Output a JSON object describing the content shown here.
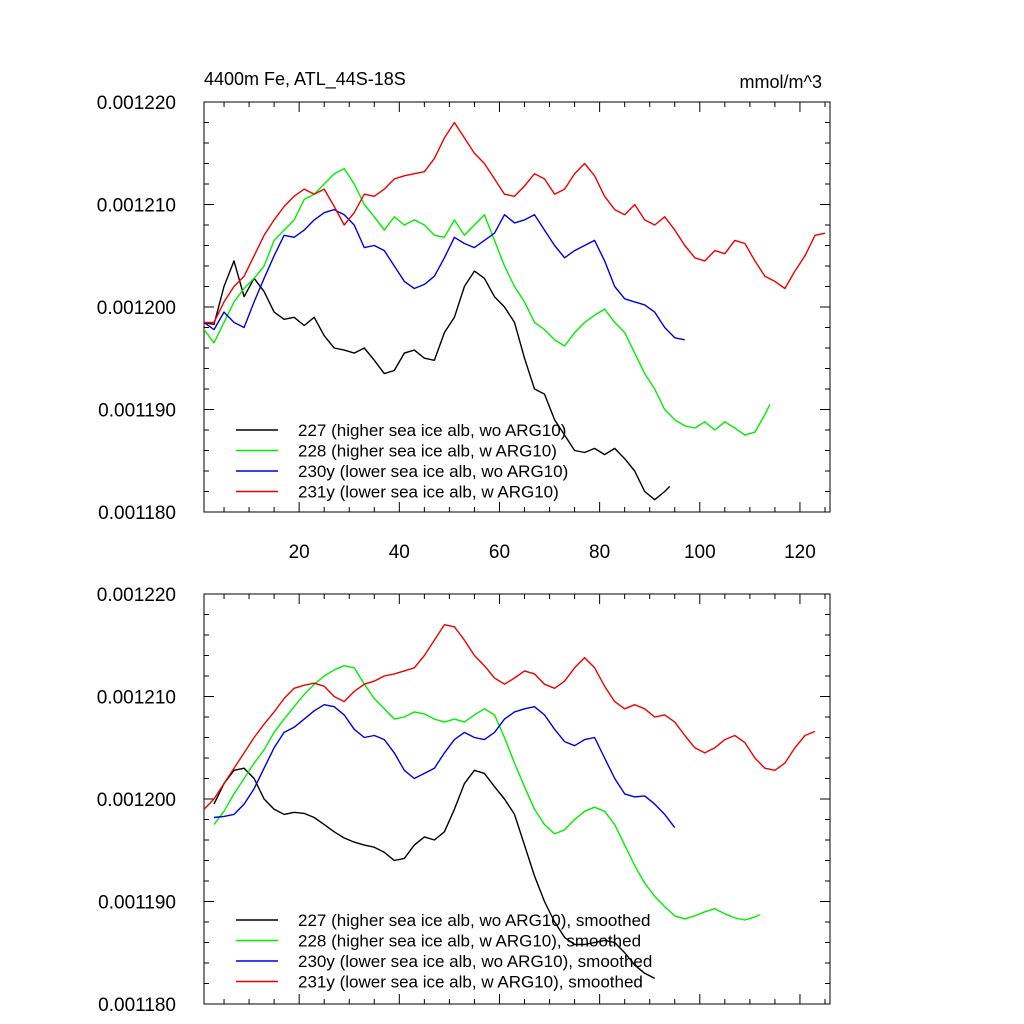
{
  "chart_data": [
    {
      "type": "line",
      "title": "4400m Fe, ATL_44S-18S",
      "units": "mmol/m^3",
      "xlim": [
        1,
        126
      ],
      "ylim": [
        0.00118,
        0.00122
      ],
      "xticks": [
        20,
        40,
        60,
        80,
        100,
        120
      ],
      "yticks": [
        0.00118,
        0.00119,
        0.0012,
        0.00121,
        0.00122
      ],
      "ytick_labels": [
        "0.001180",
        "0.001190",
        "0.001200",
        "0.001210",
        "0.001220"
      ],
      "xtick_labels": [
        "20",
        "40",
        "60",
        "80",
        "100",
        "120"
      ],
      "legend_position": "bottom-left",
      "series": [
        {
          "name": "227 (higher sea ice alb, wo ARG10)",
          "color": "#000000",
          "x": [
            1,
            3,
            5,
            7,
            9,
            11,
            13,
            15,
            17,
            19,
            21,
            23,
            25,
            27,
            29,
            31,
            33,
            35,
            37,
            39,
            41,
            43,
            45,
            47,
            49,
            51,
            53,
            55,
            57,
            59,
            61,
            63,
            65,
            67,
            69,
            71,
            73,
            75,
            77,
            79,
            81,
            83,
            85,
            87,
            89,
            91,
            93,
            94
          ],
          "values": [
            0.0011985,
            0.0011983,
            0.001202,
            0.0012045,
            0.001201,
            0.0012028,
            0.0012015,
            0.0011995,
            0.0011988,
            0.001199,
            0.0011982,
            0.001199,
            0.0011972,
            0.001196,
            0.0011958,
            0.0011955,
            0.001196,
            0.0011948,
            0.0011935,
            0.0011938,
            0.0011955,
            0.0011958,
            0.001195,
            0.0011948,
            0.0011975,
            0.001199,
            0.001202,
            0.0012035,
            0.0012028,
            0.001201,
            0.0012,
            0.0011985,
            0.001195,
            0.001192,
            0.0011915,
            0.001189,
            0.0011875,
            0.001186,
            0.0011858,
            0.0011862,
            0.0011856,
            0.0011862,
            0.0011852,
            0.001184,
            0.001182,
            0.0011812,
            0.001182,
            0.0011825
          ]
        },
        {
          "name": "228 (higher sea ice alb, w ARG10)",
          "color": "#00ee00",
          "x": [
            1,
            3,
            5,
            7,
            9,
            11,
            13,
            15,
            17,
            19,
            21,
            23,
            25,
            27,
            29,
            31,
            33,
            35,
            37,
            39,
            41,
            43,
            45,
            47,
            49,
            51,
            53,
            55,
            57,
            59,
            61,
            63,
            65,
            67,
            69,
            71,
            73,
            75,
            77,
            79,
            81,
            83,
            85,
            87,
            89,
            91,
            93,
            95,
            97,
            99,
            101,
            103,
            105,
            107,
            109,
            111,
            113,
            114
          ],
          "values": [
            0.0011978,
            0.0011965,
            0.0011985,
            0.0012005,
            0.0012018,
            0.0012028,
            0.001204,
            0.0012065,
            0.0012075,
            0.0012085,
            0.0012105,
            0.001211,
            0.001212,
            0.001213,
            0.0012135,
            0.001212,
            0.00121,
            0.0012088,
            0.0012075,
            0.0012088,
            0.001208,
            0.0012085,
            0.001208,
            0.001207,
            0.0012068,
            0.0012085,
            0.001207,
            0.001208,
            0.001209,
            0.0012065,
            0.001204,
            0.001202,
            0.0012005,
            0.0011985,
            0.0011978,
            0.0011968,
            0.0011962,
            0.0011975,
            0.0011985,
            0.0011992,
            0.0011998,
            0.0011985,
            0.0011975,
            0.0011955,
            0.0011935,
            0.001192,
            0.00119,
            0.001189,
            0.0011884,
            0.0011882,
            0.0011888,
            0.001188,
            0.0011888,
            0.0011882,
            0.0011875,
            0.0011878,
            0.0011895,
            0.0011905
          ]
        },
        {
          "name": "230y (lower sea ice alb, wo ARG10)",
          "color": "#0000dd",
          "x": [
            1,
            3,
            5,
            7,
            9,
            11,
            13,
            15,
            17,
            19,
            21,
            23,
            25,
            27,
            29,
            31,
            33,
            35,
            37,
            39,
            41,
            43,
            45,
            47,
            49,
            51,
            53,
            55,
            57,
            59,
            61,
            63,
            65,
            67,
            69,
            71,
            73,
            75,
            77,
            79,
            81,
            83,
            85,
            87,
            89,
            91,
            93,
            95,
            97
          ],
          "values": [
            0.0011985,
            0.0011978,
            0.0011995,
            0.0011985,
            0.001198,
            0.0012005,
            0.0012028,
            0.001205,
            0.001207,
            0.0012068,
            0.0012075,
            0.0012085,
            0.0012092,
            0.0012095,
            0.001209,
            0.001208,
            0.0012058,
            0.001206,
            0.0012055,
            0.001204,
            0.0012025,
            0.0012018,
            0.0012022,
            0.001203,
            0.0012048,
            0.0012068,
            0.0012062,
            0.0012058,
            0.0012065,
            0.0012072,
            0.001209,
            0.0012082,
            0.0012085,
            0.001209,
            0.0012075,
            0.001206,
            0.0012048,
            0.0012055,
            0.001206,
            0.0012065,
            0.0012045,
            0.001202,
            0.0012008,
            0.0012005,
            0.0012002,
            0.0011995,
            0.001198,
            0.001197,
            0.0011968
          ]
        },
        {
          "name": "231y (lower sea ice alb, w ARG10)",
          "color": "#ee0000",
          "x": [
            1,
            3,
            5,
            7,
            9,
            11,
            13,
            15,
            17,
            19,
            21,
            23,
            25,
            27,
            29,
            31,
            33,
            35,
            37,
            39,
            41,
            43,
            45,
            47,
            49,
            51,
            53,
            55,
            57,
            59,
            61,
            63,
            65,
            67,
            69,
            71,
            73,
            75,
            77,
            79,
            81,
            83,
            85,
            87,
            89,
            91,
            93,
            95,
            97,
            99,
            101,
            103,
            105,
            107,
            109,
            111,
            113,
            115,
            117,
            119,
            121,
            123,
            125
          ],
          "values": [
            0.0011985,
            0.0011985,
            0.0012005,
            0.001202,
            0.001203,
            0.001205,
            0.001207,
            0.0012085,
            0.0012098,
            0.0012108,
            0.0012115,
            0.001211,
            0.0012115,
            0.0012098,
            0.001208,
            0.0012092,
            0.001211,
            0.0012108,
            0.0012115,
            0.0012125,
            0.0012128,
            0.001213,
            0.0012132,
            0.0012145,
            0.0012165,
            0.001218,
            0.0012165,
            0.001215,
            0.001214,
            0.0012125,
            0.001211,
            0.0012108,
            0.0012118,
            0.001213,
            0.0012125,
            0.001211,
            0.0012115,
            0.001213,
            0.001214,
            0.0012128,
            0.0012108,
            0.0012095,
            0.001209,
            0.00121,
            0.0012085,
            0.001208,
            0.0012088,
            0.0012075,
            0.001206,
            0.0012048,
            0.0012045,
            0.0012055,
            0.0012052,
            0.0012065,
            0.0012062,
            0.0012045,
            0.001203,
            0.0012025,
            0.0012018,
            0.0012035,
            0.001205,
            0.001207,
            0.0012072
          ]
        }
      ]
    },
    {
      "type": "line",
      "xlim": [
        1,
        126
      ],
      "ylim": [
        0.00118,
        0.00122
      ],
      "xticks": [
        20,
        40,
        60,
        80,
        100,
        120
      ],
      "yticks": [
        0.00118,
        0.00119,
        0.0012,
        0.00121,
        0.00122
      ],
      "ytick_labels": [
        "0.001180",
        "0.001190",
        "0.001200",
        "0.001210",
        "0.001220"
      ],
      "legend_position": "bottom-left",
      "series": [
        {
          "name": "227 (higher sea ice alb, wo ARG10), smoothed",
          "color": "#000000",
          "x": [
            3,
            5,
            7,
            9,
            11,
            13,
            15,
            17,
            19,
            21,
            23,
            25,
            27,
            29,
            31,
            33,
            35,
            37,
            39,
            41,
            43,
            45,
            47,
            49,
            51,
            53,
            55,
            57,
            59,
            61,
            63,
            65,
            67,
            69,
            71,
            73,
            75,
            77,
            79,
            81,
            83,
            85,
            87,
            89,
            91
          ],
          "values": [
            0.0011995,
            0.0012015,
            0.0012028,
            0.001203,
            0.001202,
            0.0012,
            0.001199,
            0.0011985,
            0.0011987,
            0.0011986,
            0.0011982,
            0.0011975,
            0.0011968,
            0.0011962,
            0.0011958,
            0.0011955,
            0.0011953,
            0.0011948,
            0.001194,
            0.0011942,
            0.0011955,
            0.0011963,
            0.001196,
            0.0011968,
            0.001199,
            0.0012015,
            0.0012028,
            0.0012025,
            0.0012012,
            0.0012,
            0.0011985,
            0.0011955,
            0.0011925,
            0.00119,
            0.001188,
            0.0011865,
            0.0011858,
            0.0011858,
            0.001186,
            0.0011862,
            0.001186,
            0.001185,
            0.0011838,
            0.001183,
            0.0011825
          ]
        },
        {
          "name": "228 (higher sea ice alb, w ARG10), smoothed",
          "color": "#00ee00",
          "x": [
            3,
            5,
            7,
            9,
            11,
            13,
            15,
            17,
            19,
            21,
            23,
            25,
            27,
            29,
            31,
            33,
            35,
            37,
            39,
            41,
            43,
            45,
            47,
            49,
            51,
            53,
            55,
            57,
            59,
            61,
            63,
            65,
            67,
            69,
            71,
            73,
            75,
            77,
            79,
            81,
            83,
            85,
            87,
            89,
            91,
            93,
            95,
            97,
            99,
            101,
            103,
            105,
            107,
            109,
            111,
            112
          ],
          "values": [
            0.0011975,
            0.0011988,
            0.0012005,
            0.001202,
            0.0012035,
            0.0012048,
            0.0012065,
            0.0012078,
            0.001209,
            0.0012102,
            0.0012112,
            0.001212,
            0.0012126,
            0.001213,
            0.0012128,
            0.0012112,
            0.0012098,
            0.0012088,
            0.0012078,
            0.001208,
            0.0012085,
            0.0012083,
            0.0012078,
            0.0012075,
            0.0012078,
            0.0012075,
            0.0012082,
            0.0012088,
            0.0012082,
            0.001206,
            0.0012035,
            0.0012012,
            0.001199,
            0.0011975,
            0.0011966,
            0.001197,
            0.001198,
            0.0011988,
            0.0011992,
            0.0011988,
            0.0011975,
            0.0011955,
            0.0011935,
            0.0011918,
            0.0011905,
            0.0011895,
            0.0011886,
            0.0011883,
            0.0011886,
            0.001189,
            0.0011893,
            0.0011888,
            0.0011884,
            0.0011882,
            0.0011885,
            0.0011887
          ]
        },
        {
          "name": "230y (lower sea ice alb, wo ARG10), smoothed",
          "color": "#0000dd",
          "x": [
            3,
            5,
            7,
            9,
            11,
            13,
            15,
            17,
            19,
            21,
            23,
            25,
            27,
            29,
            31,
            33,
            35,
            37,
            39,
            41,
            43,
            45,
            47,
            49,
            51,
            53,
            55,
            57,
            59,
            61,
            63,
            65,
            67,
            69,
            71,
            73,
            75,
            77,
            79,
            81,
            83,
            85,
            87,
            89,
            91,
            93,
            95
          ],
          "values": [
            0.0011982,
            0.0011983,
            0.0011985,
            0.0011995,
            0.001201,
            0.001203,
            0.001205,
            0.0012065,
            0.001207,
            0.0012078,
            0.0012086,
            0.0012092,
            0.001209,
            0.0012082,
            0.0012068,
            0.001206,
            0.0012062,
            0.0012058,
            0.0012045,
            0.0012028,
            0.001202,
            0.0012025,
            0.001203,
            0.0012045,
            0.0012058,
            0.0012065,
            0.001206,
            0.0012058,
            0.0012065,
            0.0012078,
            0.0012085,
            0.0012088,
            0.001209,
            0.0012082,
            0.0012068,
            0.0012056,
            0.0012052,
            0.0012058,
            0.001206,
            0.001204,
            0.001202,
            0.0012005,
            0.0012002,
            0.0012003,
            0.0011995,
            0.0011985,
            0.0011972
          ]
        },
        {
          "name": "231y (lower sea ice alb, w ARG10), smoothed",
          "color": "#ee0000",
          "x": [
            1,
            3,
            5,
            7,
            9,
            11,
            13,
            15,
            17,
            19,
            21,
            23,
            25,
            27,
            29,
            31,
            33,
            35,
            37,
            39,
            41,
            43,
            45,
            47,
            49,
            51,
            53,
            55,
            57,
            59,
            61,
            63,
            65,
            67,
            69,
            71,
            73,
            75,
            77,
            79,
            81,
            83,
            85,
            87,
            89,
            91,
            93,
            95,
            97,
            99,
            101,
            103,
            105,
            107,
            109,
            111,
            113,
            115,
            117,
            119,
            121,
            123
          ],
          "values": [
            0.001199,
            0.0012,
            0.0012015,
            0.001203,
            0.0012045,
            0.001206,
            0.0012073,
            0.0012085,
            0.0012098,
            0.0012108,
            0.0012111,
            0.0012113,
            0.001211,
            0.00121,
            0.0012095,
            0.0012105,
            0.0012112,
            0.0012115,
            0.001212,
            0.0012122,
            0.0012125,
            0.0012128,
            0.001214,
            0.0012155,
            0.001217,
            0.0012168,
            0.0012155,
            0.001214,
            0.001213,
            0.0012118,
            0.0012112,
            0.0012118,
            0.0012125,
            0.0012122,
            0.0012112,
            0.0012108,
            0.0012115,
            0.0012128,
            0.0012138,
            0.0012128,
            0.001211,
            0.0012095,
            0.0012088,
            0.0012092,
            0.0012088,
            0.001208,
            0.0012082,
            0.0012075,
            0.0012062,
            0.001205,
            0.0012045,
            0.001205,
            0.0012058,
            0.0012062,
            0.0012055,
            0.001204,
            0.001203,
            0.0012028,
            0.0012035,
            0.001205,
            0.0012062,
            0.0012066
          ]
        }
      ]
    }
  ]
}
